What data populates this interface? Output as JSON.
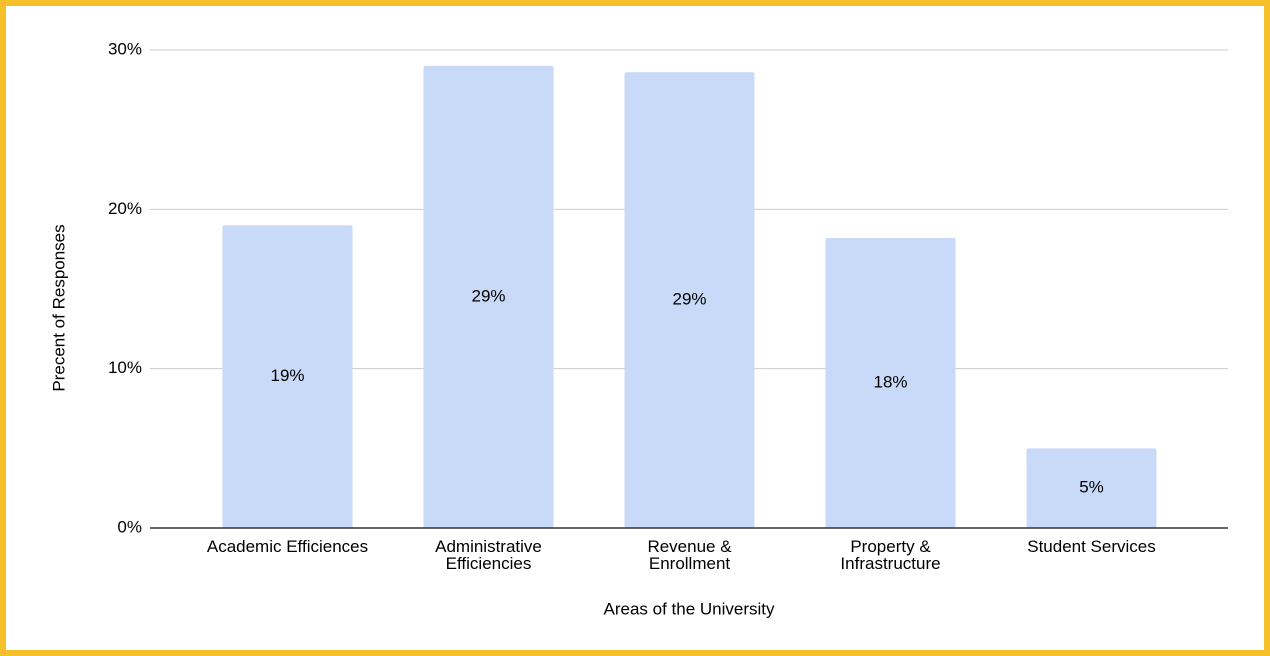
{
  "chart_data": {
    "type": "bar",
    "x_label": "Areas of the University",
    "y_label": "Precent of Responses",
    "categories": [
      "Academic Efficiences",
      "Administrative Efficiencies",
      "Revenue & Enrollment",
      "Property & Infrastructure",
      "Student Services"
    ],
    "values": [
      19,
      29,
      28.6,
      18.2,
      5
    ],
    "value_labels": [
      "19%",
      "29%",
      "29%",
      "18%",
      "5%"
    ],
    "color": "#c9daf8",
    "ylim": [
      0,
      30
    ],
    "yticks": [
      {
        "value": 0,
        "label": "0%"
      },
      {
        "value": 10,
        "label": "10%"
      },
      {
        "value": 20,
        "label": "20%"
      },
      {
        "value": 30,
        "label": "30%"
      }
    ],
    "grid": true
  }
}
